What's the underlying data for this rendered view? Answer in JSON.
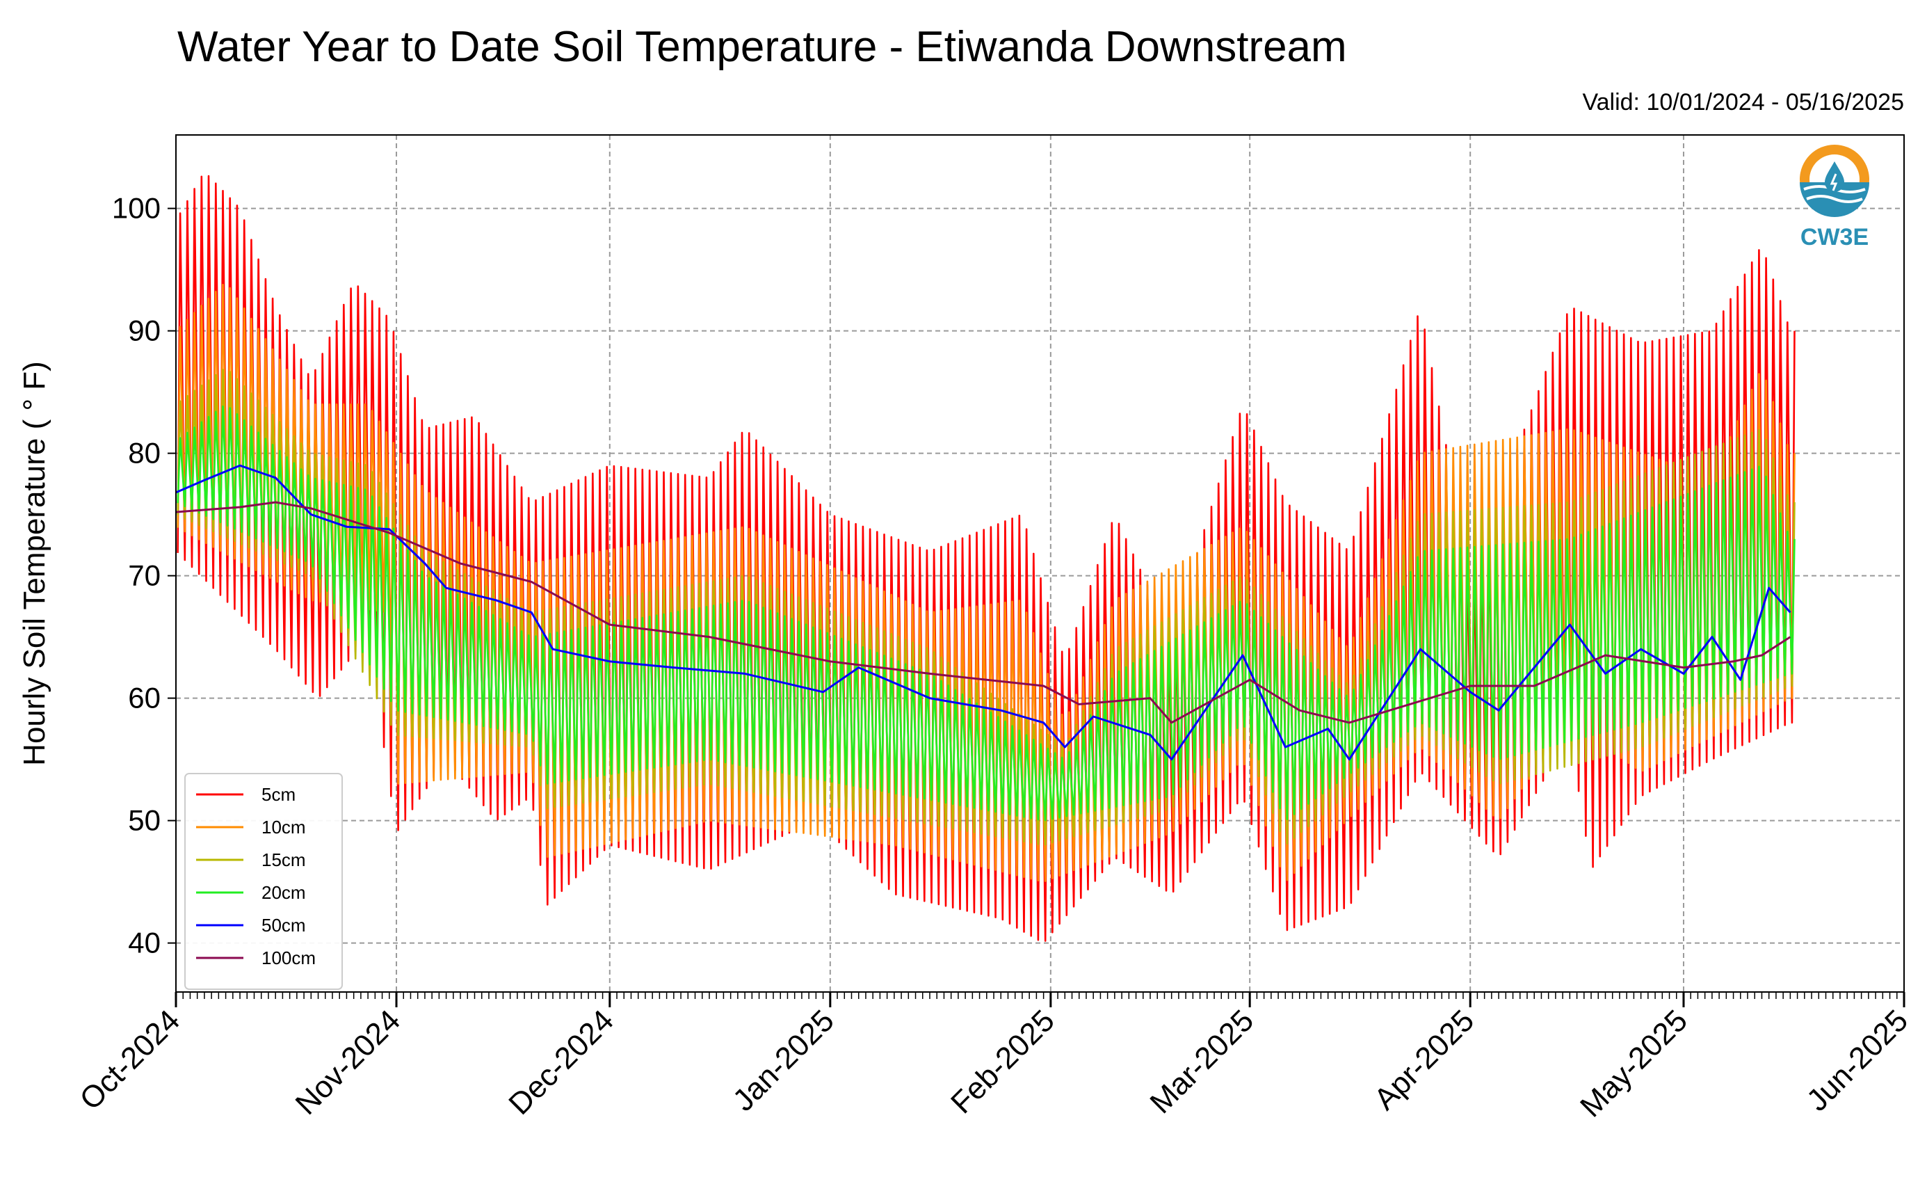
{
  "title": "Water Year to Date Soil Temperature - Etiwanda Downstream",
  "valid_text": "Valid: 10/01/2024 - 05/16/2025",
  "logo": {
    "text": "CW3E",
    "icon": "cw3e-water-drop-logo",
    "colors": {
      "ring": "#f39a1e",
      "water": "#2a8fb4"
    }
  },
  "chart_data": {
    "type": "line",
    "title": "Water Year to Date Soil Temperature - Etiwanda Downstream",
    "ylabel": "Hourly Soil Temperature ( ° F)",
    "xlabel": "",
    "ylim": [
      36,
      106
    ],
    "yticks": [
      40,
      50,
      60,
      70,
      80,
      90,
      100
    ],
    "xlim": [
      "2024-10-01",
      "2025-06-01"
    ],
    "xtick_labels": [
      "Oct-2024",
      "Nov-2024",
      "Dec-2024",
      "Jan-2025",
      "Feb-2025",
      "Mar-2025",
      "Apr-2025",
      "May-2025",
      "Jun-2025"
    ],
    "xtick_dates": [
      "2024-10-01",
      "2024-11-01",
      "2024-12-01",
      "2025-01-01",
      "2025-02-01",
      "2025-03-01",
      "2025-04-01",
      "2025-05-01",
      "2025-06-01"
    ],
    "data_end": "2025-05-16",
    "grid": true,
    "legend_position": "lower-left",
    "series": [
      {
        "name": "5cm",
        "color": "#ff0000",
        "amplitude_days": 1,
        "daily_min": [
          [
            "2024-10-01",
            72
          ],
          [
            "2024-10-15",
            64
          ],
          [
            "2024-10-21",
            60
          ],
          [
            "2024-10-28",
            65
          ],
          [
            "2024-11-01",
            49
          ],
          [
            "2024-11-08",
            55
          ],
          [
            "2024-11-15",
            50
          ],
          [
            "2024-11-20",
            52
          ],
          [
            "2024-11-22",
            43
          ],
          [
            "2024-12-01",
            48
          ],
          [
            "2024-12-15",
            46
          ],
          [
            "2024-12-30",
            50
          ],
          [
            "2025-01-10",
            44
          ],
          [
            "2025-01-25",
            42
          ],
          [
            "2025-01-31",
            40
          ],
          [
            "2025-02-10",
            47
          ],
          [
            "2025-02-18",
            44
          ],
          [
            "2025-02-28",
            52
          ],
          [
            "2025-03-06",
            41
          ],
          [
            "2025-03-15",
            43
          ],
          [
            "2025-03-25",
            54
          ],
          [
            "2025-04-05",
            47
          ],
          [
            "2025-04-15",
            57
          ],
          [
            "2025-04-18",
            46
          ],
          [
            "2025-04-25",
            52
          ],
          [
            "2025-05-05",
            55
          ],
          [
            "2025-05-16",
            58
          ]
        ],
        "daily_max": [
          [
            "2024-10-01",
            99
          ],
          [
            "2024-10-05",
            103
          ],
          [
            "2024-10-10",
            100
          ],
          [
            "2024-10-15",
            92
          ],
          [
            "2024-10-20",
            86
          ],
          [
            "2024-10-26",
            94
          ],
          [
            "2024-10-31",
            91
          ],
          [
            "2024-11-05",
            82
          ],
          [
            "2024-11-12",
            83
          ],
          [
            "2024-11-20",
            76
          ],
          [
            "2024-12-01",
            79
          ],
          [
            "2024-12-15",
            78
          ],
          [
            "2024-12-20",
            82
          ],
          [
            "2025-01-01",
            75
          ],
          [
            "2025-01-15",
            72
          ],
          [
            "2025-01-28",
            75
          ],
          [
            "2025-02-03",
            63
          ],
          [
            "2025-02-10",
            75
          ],
          [
            "2025-02-18",
            65
          ],
          [
            "2025-02-28",
            84
          ],
          [
            "2025-03-06",
            76
          ],
          [
            "2025-03-15",
            72
          ],
          [
            "2025-03-25",
            92
          ],
          [
            "2025-04-01",
            70
          ],
          [
            "2025-04-15",
            92
          ],
          [
            "2025-04-25",
            89
          ],
          [
            "2025-05-05",
            90
          ],
          [
            "2025-05-12",
            97
          ],
          [
            "2025-05-16",
            90
          ]
        ]
      },
      {
        "name": "10cm",
        "color": "#ff8c00",
        "amplitude_days": 1,
        "daily_min": [
          [
            "2024-10-01",
            74
          ],
          [
            "2024-10-20",
            68
          ],
          [
            "2024-10-31",
            67
          ],
          [
            "2024-11-01",
            53
          ],
          [
            "2024-11-20",
            54
          ],
          [
            "2024-11-22",
            47
          ],
          [
            "2024-12-15",
            50
          ],
          [
            "2025-01-10",
            48
          ],
          [
            "2025-01-31",
            45
          ],
          [
            "2025-02-18",
            49
          ],
          [
            "2025-02-28",
            55
          ],
          [
            "2025-03-06",
            45
          ],
          [
            "2025-03-25",
            56
          ],
          [
            "2025-04-05",
            50
          ],
          [
            "2025-04-15",
            58
          ],
          [
            "2025-04-25",
            54
          ],
          [
            "2025-05-16",
            60
          ]
        ],
        "daily_max": [
          [
            "2024-10-01",
            90
          ],
          [
            "2024-10-08",
            94
          ],
          [
            "2024-10-20",
            84
          ],
          [
            "2024-10-28",
            84
          ],
          [
            "2024-11-05",
            77
          ],
          [
            "2024-11-20",
            71
          ],
          [
            "2024-12-20",
            74
          ],
          [
            "2025-01-15",
            67
          ],
          [
            "2025-01-28",
            68
          ],
          [
            "2025-02-03",
            58
          ],
          [
            "2025-02-10",
            68
          ],
          [
            "2025-02-28",
            74
          ],
          [
            "2025-03-15",
            64
          ],
          [
            "2025-03-25",
            80
          ],
          [
            "2025-04-15",
            82
          ],
          [
            "2025-05-05",
            78
          ],
          [
            "2025-05-12",
            87
          ],
          [
            "2025-05-16",
            80
          ]
        ]
      },
      {
        "name": "15cm",
        "color": "#b8b800",
        "amplitude_days": 1,
        "daily_min": [
          [
            "2024-10-01",
            75
          ],
          [
            "2024-10-20",
            70
          ],
          [
            "2024-11-01",
            57
          ],
          [
            "2024-11-20",
            56
          ],
          [
            "2024-11-22",
            51
          ],
          [
            "2024-12-15",
            53
          ],
          [
            "2025-01-31",
            48
          ],
          [
            "2025-02-18",
            51
          ],
          [
            "2025-02-28",
            57
          ],
          [
            "2025-03-06",
            48
          ],
          [
            "2025-03-25",
            57
          ],
          [
            "2025-04-05",
            53
          ],
          [
            "2025-04-25",
            56
          ],
          [
            "2025-05-16",
            61
          ]
        ],
        "daily_max": [
          [
            "2024-10-01",
            84
          ],
          [
            "2024-10-08",
            87
          ],
          [
            "2024-10-20",
            80
          ],
          [
            "2024-10-28",
            79
          ],
          [
            "2024-11-05",
            72
          ],
          [
            "2024-11-20",
            67
          ],
          [
            "2024-12-20",
            70
          ],
          [
            "2025-01-15",
            64
          ],
          [
            "2025-02-03",
            56
          ],
          [
            "2025-02-10",
            64
          ],
          [
            "2025-02-28",
            70
          ],
          [
            "2025-03-15",
            61
          ],
          [
            "2025-03-25",
            75
          ],
          [
            "2025-04-15",
            76
          ],
          [
            "2025-05-12",
            82
          ],
          [
            "2025-05-16",
            76
          ]
        ]
      },
      {
        "name": "20cm",
        "color": "#22ee22",
        "amplitude_days": 1,
        "daily_min": [
          [
            "2024-10-01",
            76
          ],
          [
            "2024-10-20",
            71
          ],
          [
            "2024-11-01",
            59
          ],
          [
            "2024-11-20",
            57
          ],
          [
            "2024-11-22",
            53
          ],
          [
            "2024-12-15",
            55
          ],
          [
            "2025-01-31",
            50
          ],
          [
            "2025-02-18",
            52
          ],
          [
            "2025-02-28",
            58
          ],
          [
            "2025-03-06",
            50
          ],
          [
            "2025-03-25",
            58
          ],
          [
            "2025-04-05",
            55
          ],
          [
            "2025-04-25",
            58
          ],
          [
            "2025-05-16",
            62
          ]
        ],
        "daily_max": [
          [
            "2024-10-01",
            81
          ],
          [
            "2024-10-08",
            84
          ],
          [
            "2024-10-20",
            78
          ],
          [
            "2024-10-28",
            77
          ],
          [
            "2024-11-05",
            70
          ],
          [
            "2024-11-20",
            65
          ],
          [
            "2024-12-20",
            68
          ],
          [
            "2025-01-15",
            62
          ],
          [
            "2025-02-03",
            55
          ],
          [
            "2025-02-10",
            62
          ],
          [
            "2025-02-28",
            68
          ],
          [
            "2025-03-15",
            60
          ],
          [
            "2025-03-25",
            72
          ],
          [
            "2025-04-15",
            73
          ],
          [
            "2025-05-12",
            79
          ],
          [
            "2025-05-16",
            73
          ]
        ]
      },
      {
        "name": "50cm",
        "color": "#0000ff",
        "points": [
          [
            "2024-10-01",
            76.8
          ],
          [
            "2024-10-05",
            77.8
          ],
          [
            "2024-10-10",
            79.0
          ],
          [
            "2024-10-15",
            78.0
          ],
          [
            "2024-10-20",
            75.0
          ],
          [
            "2024-10-25",
            74.0
          ],
          [
            "2024-10-31",
            73.8
          ],
          [
            "2024-11-05",
            71.0
          ],
          [
            "2024-11-08",
            69.0
          ],
          [
            "2024-11-15",
            68.0
          ],
          [
            "2024-11-20",
            67.0
          ],
          [
            "2024-11-23",
            64.0
          ],
          [
            "2024-12-01",
            63.0
          ],
          [
            "2024-12-10",
            62.5
          ],
          [
            "2024-12-20",
            62.0
          ],
          [
            "2024-12-31",
            60.5
          ],
          [
            "2025-01-05",
            62.5
          ],
          [
            "2025-01-15",
            60.0
          ],
          [
            "2025-01-25",
            59.0
          ],
          [
            "2025-01-31",
            58.0
          ],
          [
            "2025-02-03",
            56.0
          ],
          [
            "2025-02-07",
            58.5
          ],
          [
            "2025-02-15",
            57.0
          ],
          [
            "2025-02-18",
            55.0
          ],
          [
            "2025-02-28",
            63.5
          ],
          [
            "2025-03-06",
            56.0
          ],
          [
            "2025-03-12",
            57.5
          ],
          [
            "2025-03-15",
            55.0
          ],
          [
            "2025-03-25",
            64.0
          ],
          [
            "2025-04-01",
            60.5
          ],
          [
            "2025-04-05",
            59.0
          ],
          [
            "2025-04-15",
            66.0
          ],
          [
            "2025-04-20",
            62.0
          ],
          [
            "2025-04-25",
            64.0
          ],
          [
            "2025-05-01",
            62.0
          ],
          [
            "2025-05-05",
            65.0
          ],
          [
            "2025-05-09",
            61.5
          ],
          [
            "2025-05-13",
            69.0
          ],
          [
            "2025-05-16",
            67.0
          ]
        ]
      },
      {
        "name": "100cm",
        "color": "#8b0a50",
        "points": [
          [
            "2024-10-01",
            75.2
          ],
          [
            "2024-10-10",
            75.6
          ],
          [
            "2024-10-15",
            76.0
          ],
          [
            "2024-10-20",
            75.5
          ],
          [
            "2024-10-31",
            73.5
          ],
          [
            "2024-11-10",
            71.0
          ],
          [
            "2024-11-20",
            69.5
          ],
          [
            "2024-12-01",
            66.0
          ],
          [
            "2024-12-15",
            65.0
          ],
          [
            "2025-01-01",
            63.0
          ],
          [
            "2025-01-15",
            62.0
          ],
          [
            "2025-01-31",
            61.0
          ],
          [
            "2025-02-05",
            59.5
          ],
          [
            "2025-02-15",
            60.0
          ],
          [
            "2025-02-18",
            58.0
          ],
          [
            "2025-03-01",
            61.5
          ],
          [
            "2025-03-08",
            59.0
          ],
          [
            "2025-03-15",
            58.0
          ],
          [
            "2025-04-01",
            61.0
          ],
          [
            "2025-04-10",
            61.0
          ],
          [
            "2025-04-20",
            63.5
          ],
          [
            "2025-05-01",
            62.5
          ],
          [
            "2025-05-08",
            63.0
          ],
          [
            "2025-05-12",
            63.5
          ],
          [
            "2025-05-16",
            65.0
          ]
        ]
      }
    ]
  }
}
